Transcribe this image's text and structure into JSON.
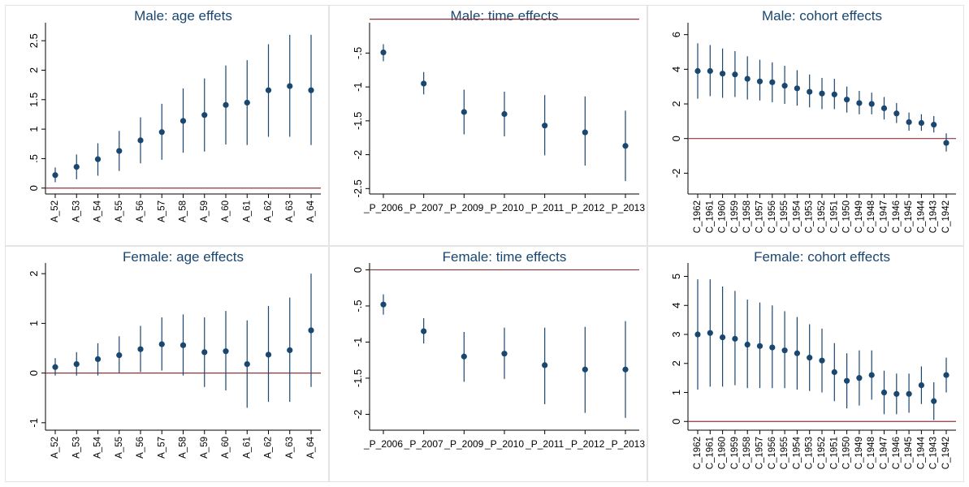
{
  "colors": {
    "background": "#ffffff",
    "point": "#1a476f",
    "reference_line": "#90353b",
    "frame": "#e4e4e4"
  },
  "chart_data": [
    {
      "type": "scatter",
      "title": "Male: age effets",
      "categories": [
        "A_52",
        "A_53",
        "A_54",
        "A_55",
        "A_56",
        "A_57",
        "A_58",
        "A_59",
        "A_60",
        "A_61",
        "A_62",
        "A_63",
        "A_64"
      ],
      "values": [
        0.22,
        0.36,
        0.49,
        0.63,
        0.81,
        0.95,
        1.14,
        1.24,
        1.41,
        1.45,
        1.66,
        1.73,
        1.66
      ],
      "ci_low": [
        0.1,
        0.15,
        0.21,
        0.29,
        0.42,
        0.48,
        0.6,
        0.62,
        0.74,
        0.73,
        0.87,
        0.87,
        0.73
      ],
      "ci_high": [
        0.35,
        0.57,
        0.76,
        0.97,
        1.2,
        1.43,
        1.69,
        1.86,
        2.08,
        2.17,
        2.44,
        2.6,
        2.6
      ],
      "ylim": [
        -0.1,
        2.75
      ],
      "yticks": [
        "0",
        ".5",
        "1",
        "1.5",
        "2",
        "2.5"
      ],
      "reference_line": 0
    },
    {
      "type": "scatter",
      "title": "Male: time effects",
      "categories": [
        "_P_2006",
        "_P_2007",
        "_P_2009",
        "_P_2010",
        "_P_2011",
        "_P_2012",
        "_P_2013"
      ],
      "values": [
        -0.49,
        -0.95,
        -1.37,
        -1.4,
        -1.57,
        -1.67,
        -1.87
      ],
      "ci_low": [
        -0.62,
        -1.11,
        -1.7,
        -1.73,
        -2.01,
        -2.16,
        -2.39
      ],
      "ci_high": [
        -0.37,
        -0.78,
        -1.04,
        -1.07,
        -1.12,
        -1.14,
        -1.35
      ],
      "ylim": [
        -2.58,
        -0.1
      ],
      "yticks": [
        "-.5",
        "-1",
        "-1.5",
        "-2",
        "-2.5"
      ],
      "reference_line": 0
    },
    {
      "type": "scatter",
      "title": "Male: cohort effects",
      "categories": [
        "C_1962",
        "C_1961",
        "C_1960",
        "C_1959",
        "C_1958",
        "C_1957",
        "C_1956",
        "C_1955",
        "C_1954",
        "C_1953",
        "C_1952",
        "C_1951",
        "C_1950",
        "C_1949",
        "C_1948",
        "C_1947",
        "C_1946",
        "C_1945",
        "C_1944",
        "C_1943",
        "C_1942"
      ],
      "values": [
        3.9,
        3.9,
        3.75,
        3.7,
        3.45,
        3.3,
        3.25,
        3.05,
        2.9,
        2.7,
        2.6,
        2.55,
        2.25,
        2.05,
        2.0,
        1.75,
        1.45,
        0.95,
        0.9,
        0.8,
        -0.25
      ],
      "ci_low": [
        2.3,
        2.45,
        2.35,
        2.4,
        2.25,
        2.2,
        2.1,
        2.0,
        1.9,
        1.8,
        1.7,
        1.7,
        1.5,
        1.4,
        1.4,
        1.1,
        0.9,
        0.45,
        0.45,
        0.35,
        -0.75
      ],
      "ci_high": [
        5.5,
        5.4,
        5.2,
        5.05,
        4.75,
        4.55,
        4.4,
        4.2,
        3.95,
        3.7,
        3.5,
        3.45,
        3.0,
        2.75,
        2.65,
        2.4,
        2.05,
        1.5,
        1.4,
        1.3,
        0.3
      ],
      "ylim": [
        -3.2,
        6.5
      ],
      "yticks": [
        "-2",
        "0",
        "2",
        "4",
        "6"
      ],
      "reference_line": 0
    },
    {
      "type": "scatter",
      "title": "Female: age effects",
      "categories": [
        "A_52",
        "A_53",
        "A_54",
        "A_55",
        "A_56",
        "A_57",
        "A_58",
        "A_59",
        "A_60",
        "A_61",
        "A_62",
        "A_63",
        "A_64"
      ],
      "values": [
        0.12,
        0.18,
        0.28,
        0.36,
        0.48,
        0.58,
        0.56,
        0.42,
        0.44,
        0.18,
        0.37,
        0.46,
        0.86
      ],
      "ci_low": [
        -0.05,
        -0.05,
        -0.05,
        0.0,
        0.02,
        0.05,
        -0.05,
        -0.28,
        -0.35,
        -0.7,
        -0.58,
        -0.58,
        -0.28
      ],
      "ci_high": [
        0.3,
        0.42,
        0.6,
        0.74,
        0.95,
        1.12,
        1.18,
        1.12,
        1.25,
        1.06,
        1.35,
        1.52,
        2.0
      ],
      "ylim": [
        -1.15,
        2.15
      ],
      "yticks": [
        "-1",
        "0",
        "1",
        "2"
      ],
      "reference_line": 0
    },
    {
      "type": "scatter",
      "title": "Female: time effects",
      "categories": [
        "_P_2006",
        "_P_2007",
        "_P_2009",
        "_P_2010",
        "_P_2011",
        "_P_2012",
        "_P_2013"
      ],
      "values": [
        -0.48,
        -0.85,
        -1.2,
        -1.16,
        -1.32,
        -1.38,
        -1.38
      ],
      "ci_low": [
        -0.62,
        -1.02,
        -1.55,
        -1.51,
        -1.86,
        -1.98,
        -2.05
      ],
      "ci_high": [
        -0.34,
        -0.67,
        -0.86,
        -0.8,
        -0.8,
        -0.79,
        -0.71
      ],
      "ylim": [
        -2.22,
        0.05
      ],
      "yticks": [
        "0",
        "-.5",
        "-1",
        "-1.5",
        "-2"
      ],
      "reference_line": 0
    },
    {
      "type": "scatter",
      "title": "Female: cohort effects",
      "categories": [
        "C_1962",
        "C_1961",
        "C_1960",
        "C_1959",
        "C_1958",
        "C_1957",
        "C_1956",
        "C_1955",
        "C_1954",
        "C_1953",
        "C_1952",
        "C_1951",
        "C_1950",
        "C_1949",
        "C_1948",
        "C_1947",
        "C_1946",
        "C_1945",
        "C_1944",
        "C_1943",
        "C_1942"
      ],
      "values": [
        3.0,
        3.05,
        2.9,
        2.85,
        2.65,
        2.6,
        2.55,
        2.45,
        2.35,
        2.2,
        2.1,
        1.7,
        1.4,
        1.5,
        1.6,
        1.0,
        0.95,
        0.95,
        1.25,
        0.7,
        1.6
      ],
      "ci_low": [
        1.1,
        1.2,
        1.2,
        1.25,
        1.15,
        1.15,
        1.15,
        1.15,
        1.1,
        1.05,
        1.0,
        0.7,
        0.45,
        0.55,
        0.75,
        0.25,
        0.25,
        0.3,
        0.6,
        0.05,
        1.0
      ],
      "ci_high": [
        4.9,
        4.9,
        4.65,
        4.5,
        4.2,
        4.1,
        4.0,
        3.8,
        3.6,
        3.35,
        3.2,
        2.7,
        2.35,
        2.45,
        2.45,
        1.75,
        1.65,
        1.65,
        1.9,
        1.35,
        2.2
      ],
      "ylim": [
        -0.3,
        5.35
      ],
      "yticks": [
        "0",
        "1",
        "2",
        "3",
        "4",
        "5"
      ],
      "reference_line": 0
    }
  ]
}
